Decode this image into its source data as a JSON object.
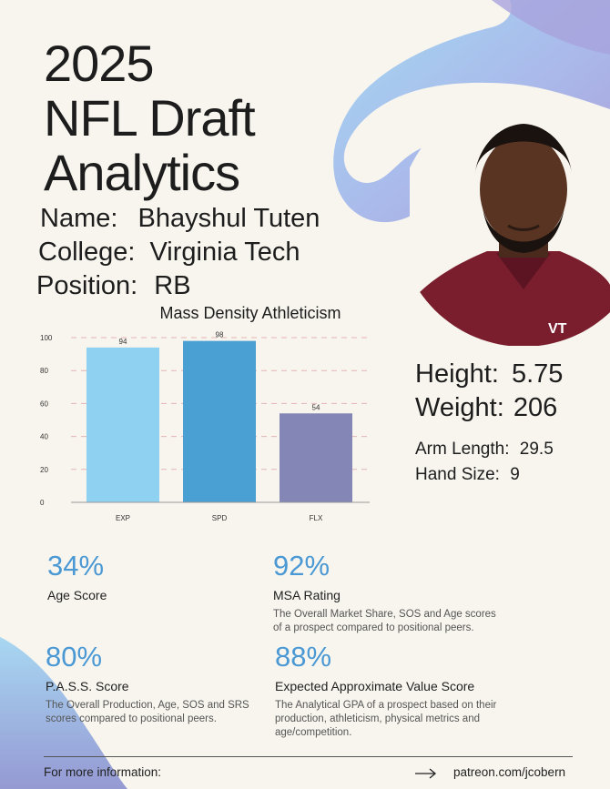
{
  "colors": {
    "background": "#f8f5ee",
    "accent_blue": "#4a98d4",
    "bar_exp": "#8fd1f1",
    "bar_spd": "#4a9fd3",
    "bar_flx": "#8486b6",
    "jersey_maroon": "#7a1e2e"
  },
  "title": {
    "line1": "2025",
    "line2": "NFL Draft",
    "line3": "Analytics"
  },
  "player": {
    "name_label": "Name:",
    "name": "Bhayshul Tuten",
    "college_label": "College:",
    "college": "Virginia Tech",
    "position_label": "Position:",
    "position": "RB",
    "photo_icon": "player-portrait",
    "jersey_logo": "VT"
  },
  "measurements": {
    "height_label": "Height:",
    "height": "5.75",
    "weight_label": "Weight:",
    "weight": "206",
    "arm_label": "Arm Length:",
    "arm": "29.5",
    "hand_label": "Hand Size:",
    "hand": "9"
  },
  "chart_data": {
    "type": "bar",
    "title": "Mass Density Athleticism",
    "categories": [
      "EXP",
      "SPD",
      "FLX"
    ],
    "values": [
      94,
      98,
      54
    ],
    "data_labels": [
      "94",
      "98",
      "54"
    ],
    "ylim": [
      0,
      100
    ],
    "yticks": [
      "0",
      "20",
      "40",
      "60",
      "80",
      "100"
    ],
    "grid": true,
    "xlabel": "",
    "ylabel": ""
  },
  "metrics": [
    {
      "value": "34%",
      "title": "Age Score",
      "desc_lines": []
    },
    {
      "value": "92%",
      "title": "MSA Rating",
      "desc_lines": [
        "The Overall Market Share, SOS and Age scores",
        "of a prospect compared to positional peers."
      ]
    },
    {
      "value": "80%",
      "title": "P.A.S.S. Score",
      "desc_lines": [
        "The Overall Production, Age, SOS and SRS",
        "scores compared to positional peers."
      ]
    },
    {
      "value": "88%",
      "title": "Expected Approximate Value Score",
      "desc_lines": [
        "The Analytical GPA of a prospect based on their",
        "production, athleticism, physical metrics and",
        "age/competition."
      ]
    }
  ],
  "footer": {
    "label": "For more information:",
    "arrow_icon": "arrow-right-icon",
    "link": "patreon.com/jcobern"
  }
}
